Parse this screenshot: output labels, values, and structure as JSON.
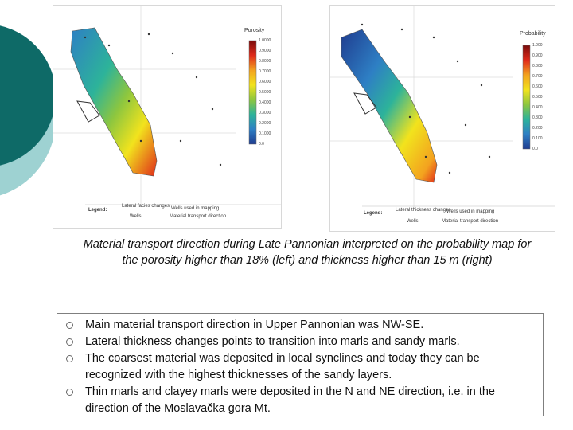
{
  "colors": {
    "deco_dark": "#0e6a67",
    "deco_light": "#9ed2d2",
    "scale_stops": [
      "#7a0c0c",
      "#e02a1a",
      "#f3a21f",
      "#f2e31d",
      "#8dc63f",
      "#2db39a",
      "#2e7fc4",
      "#1f3c8f"
    ]
  },
  "map_left": {
    "scale_title": "Porosity",
    "scale_ticks": [
      "1.0000",
      "0.9000",
      "0.8000",
      "0.7000",
      "0.6000",
      "0.5000",
      "0.4000",
      "0.3000",
      "0.2000",
      "0.1000",
      "0.0"
    ],
    "legend": {
      "title": "Legend:",
      "lateral": "Lateral facies changes",
      "wells_mapping": "Wells used in mapping",
      "wells": "Wells",
      "transport": "Material transport direction"
    }
  },
  "map_right": {
    "scale_title": "Probability",
    "scale_ticks": [
      "1.000",
      "0.900",
      "0.800",
      "0.700",
      "0.600",
      "0.500",
      "0.400",
      "0.300",
      "0.200",
      "0.100",
      "0.0"
    ],
    "legend": {
      "title": "Legend:",
      "lateral": "Lateral thickness changes",
      "wells_mapping": "Wells used in mapping",
      "wells": "Wells",
      "transport": "Material transport direction"
    }
  },
  "caption": "Material transport direction during Late Pannonian interpreted on the probability map for the porosity higher than 18% (left) and thickness higher than 15 m (right)",
  "bullets": [
    "Main material transport direction in Upper Pannonian was NW-SE.",
    "Lateral thickness changes points to transition into marls and sandy marls.",
    "The coarsest material was deposited in local synclines and today they can be recognized with the highest thicknesses of the sandy layers.",
    "Thin marls and clayey marls were deposited in the N and NE direction, i.e. in the direction of the Moslavačka gora Mt."
  ]
}
